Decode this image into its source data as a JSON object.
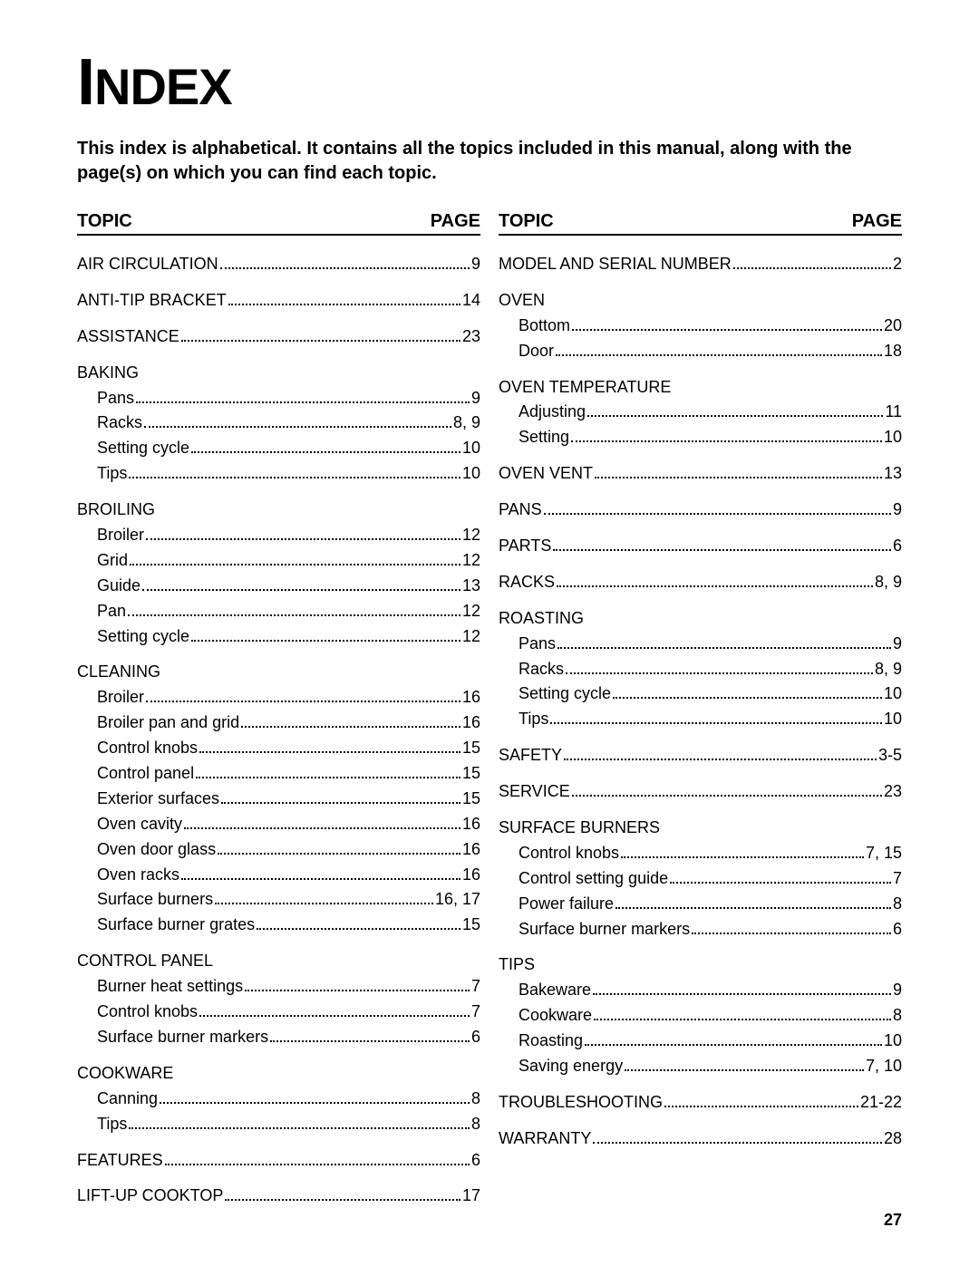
{
  "title_word": "INDEX",
  "intro": "This index is alphabetical. It contains all the topics included in this manual, along with the page(s) on which you can find each topic.",
  "header_topic": "TOPIC",
  "header_page": "PAGE",
  "page_number": "27",
  "col1": [
    {
      "type": "row",
      "label": "AIR CIRCULATION",
      "page": "9"
    },
    {
      "type": "row",
      "label": "ANTI-TIP BRACKET",
      "page": "14"
    },
    {
      "type": "row",
      "label": "ASSISTANCE",
      "page": "23"
    },
    {
      "type": "heading",
      "label": "BAKING"
    },
    {
      "type": "sub",
      "label": "Pans",
      "page": "9"
    },
    {
      "type": "sub",
      "label": "Racks",
      "page": "8, 9"
    },
    {
      "type": "sub",
      "label": "Setting cycle",
      "page": "10"
    },
    {
      "type": "sub",
      "label": "Tips",
      "page": "10"
    },
    {
      "type": "heading",
      "label": "BROILING"
    },
    {
      "type": "sub",
      "label": "Broiler",
      "page": "12"
    },
    {
      "type": "sub",
      "label": "Grid",
      "page": "12"
    },
    {
      "type": "sub",
      "label": "Guide",
      "page": "13"
    },
    {
      "type": "sub",
      "label": "Pan",
      "page": "12"
    },
    {
      "type": "sub",
      "label": "Setting cycle",
      "page": "12"
    },
    {
      "type": "heading",
      "label": "CLEANING"
    },
    {
      "type": "sub",
      "label": "Broiler",
      "page": "16"
    },
    {
      "type": "sub",
      "label": "Broiler pan and grid",
      "page": "16"
    },
    {
      "type": "sub",
      "label": "Control knobs",
      "page": "15"
    },
    {
      "type": "sub",
      "label": "Control panel",
      "page": "15"
    },
    {
      "type": "sub",
      "label": "Exterior surfaces",
      "page": "15"
    },
    {
      "type": "sub",
      "label": "Oven cavity",
      "page": "16"
    },
    {
      "type": "sub",
      "label": "Oven door glass",
      "page": "16"
    },
    {
      "type": "sub",
      "label": "Oven racks",
      "page": "16"
    },
    {
      "type": "sub",
      "label": "Surface burners",
      "page": "16, 17"
    },
    {
      "type": "sub",
      "label": "Surface burner grates",
      "page": "15"
    },
    {
      "type": "heading",
      "label": "CONTROL PANEL"
    },
    {
      "type": "sub",
      "label": "Burner heat settings",
      "page": "7"
    },
    {
      "type": "sub",
      "label": "Control knobs",
      "page": "7"
    },
    {
      "type": "sub",
      "label": "Surface burner markers",
      "page": "6"
    },
    {
      "type": "heading",
      "label": "COOKWARE"
    },
    {
      "type": "sub",
      "label": "Canning",
      "page": "8"
    },
    {
      "type": "sub",
      "label": "Tips",
      "page": "8"
    },
    {
      "type": "row",
      "label": "FEATURES",
      "page": "6"
    },
    {
      "type": "row",
      "label": "LIFT-UP COOKTOP",
      "page": "17"
    }
  ],
  "col2": [
    {
      "type": "row",
      "label": "MODEL AND SERIAL NUMBER",
      "page": "2"
    },
    {
      "type": "heading",
      "label": "OVEN"
    },
    {
      "type": "sub",
      "label": "Bottom",
      "page": "20"
    },
    {
      "type": "sub",
      "label": "Door",
      "page": "18"
    },
    {
      "type": "heading",
      "label": "OVEN TEMPERATURE"
    },
    {
      "type": "sub",
      "label": "Adjusting",
      "page": "11"
    },
    {
      "type": "sub",
      "label": "Setting",
      "page": "10"
    },
    {
      "type": "row",
      "label": "OVEN VENT",
      "page": "13"
    },
    {
      "type": "row",
      "label": "PANS",
      "page": "9"
    },
    {
      "type": "row",
      "label": "PARTS",
      "page": "6"
    },
    {
      "type": "row",
      "label": "RACKS",
      "page": "8, 9"
    },
    {
      "type": "heading",
      "label": "ROASTING"
    },
    {
      "type": "sub",
      "label": "Pans",
      "page": "9"
    },
    {
      "type": "sub",
      "label": "Racks",
      "page": "8, 9"
    },
    {
      "type": "sub",
      "label": "Setting cycle",
      "page": "10"
    },
    {
      "type": "sub",
      "label": "Tips",
      "page": "10"
    },
    {
      "type": "row",
      "label": "SAFETY",
      "page": "3-5"
    },
    {
      "type": "row",
      "label": "SERVICE",
      "page": "23"
    },
    {
      "type": "heading",
      "label": "SURFACE BURNERS"
    },
    {
      "type": "sub",
      "label": "Control knobs",
      "page": "7, 15"
    },
    {
      "type": "sub",
      "label": "Control setting guide",
      "page": "7"
    },
    {
      "type": "sub",
      "label": "Power failure",
      "page": "8"
    },
    {
      "type": "sub",
      "label": "Surface burner markers",
      "page": "6"
    },
    {
      "type": "heading",
      "label": "TIPS"
    },
    {
      "type": "sub",
      "label": "Bakeware",
      "page": "9"
    },
    {
      "type": "sub",
      "label": "Cookware",
      "page": "8"
    },
    {
      "type": "sub",
      "label": "Roasting",
      "page": "10"
    },
    {
      "type": "sub",
      "label": "Saving energy",
      "page": "7, 10"
    },
    {
      "type": "row",
      "label": "TROUBLESHOOTING",
      "page": "21-22"
    },
    {
      "type": "row",
      "label": "WARRANTY",
      "page": "28"
    }
  ]
}
